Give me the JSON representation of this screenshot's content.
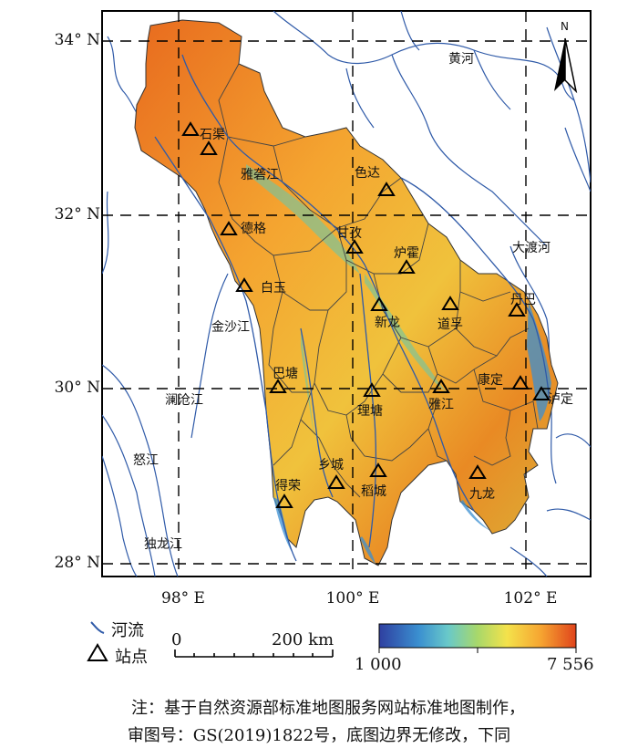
{
  "map": {
    "lat_labels": [
      "34° N",
      "32° N",
      "30° N",
      "28° N"
    ],
    "lon_labels": [
      "98° E",
      "100° E",
      "102° E"
    ],
    "north_arrow": {
      "label": "N",
      "icon": "north-arrow-icon"
    },
    "rivers": [
      "黄河",
      "雅砻江",
      "大渡河",
      "金沙江",
      "澜沧江",
      "怒江",
      "独龙江"
    ],
    "stations": [
      "石渠",
      "色达",
      "德格",
      "甘孜",
      "炉霍",
      "白玉",
      "新龙",
      "道孚",
      "丹巴",
      "巴塘",
      "理塘",
      "雅江",
      "康定",
      "泸定",
      "乡城",
      "稻城",
      "得荣",
      "九龙"
    ]
  },
  "legend": {
    "river_label": "河流",
    "station_label": "站点",
    "scale_start": "0",
    "scale_end": "200 km",
    "elev_min": "1 000",
    "elev_max": "7 556",
    "colors": [
      "#2f3fa0",
      "#3a8fd0",
      "#69c9c9",
      "#a8d86a",
      "#f4e24b",
      "#f6a531",
      "#e0441c"
    ],
    "river_color": "#2f5aa8",
    "station_icon": "triangle-icon"
  },
  "note": {
    "line1": "注：基于自然资源部标准地图服务网站标准地图制作，",
    "line2": "审图号：GS(2019)1822号，底图边界无修改，下同"
  }
}
